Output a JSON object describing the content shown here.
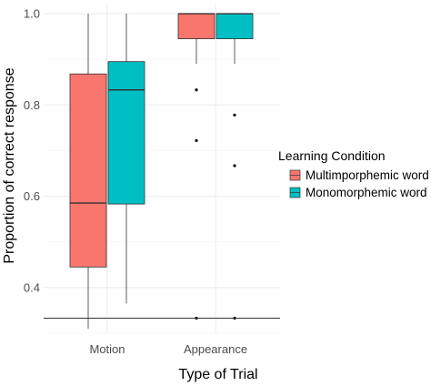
{
  "chart_data": {
    "type": "boxplot",
    "xlabel": "Type of Trial",
    "ylabel": "Proportion of correct response",
    "ylim": [
      0.3,
      1.02
    ],
    "yticks": [
      0.4,
      0.6,
      0.8,
      1.0
    ],
    "ytick_labels": [
      "0.4",
      "0.6",
      "0.8",
      "1.0"
    ],
    "categories": [
      "Motion",
      "Appearance"
    ],
    "reference_line_y": 0.333,
    "grid": true,
    "legend": {
      "title": "Learning Condition",
      "position": "right"
    },
    "series": [
      {
        "name": "Multimporphemic word",
        "color": "#F8766D",
        "boxes": [
          {
            "category": "Motion",
            "whisker_low": 0.31,
            "q1": 0.445,
            "median": 0.585,
            "q3": 0.868,
            "whisker_high": 1.0,
            "outliers": []
          },
          {
            "category": "Appearance",
            "whisker_low": 0.89,
            "q1": 0.945,
            "median": 1.0,
            "q3": 1.0,
            "whisker_high": 1.0,
            "outliers": [
              0.833,
              0.722,
              0.333
            ]
          }
        ]
      },
      {
        "name": "Monomorphemic word",
        "color": "#00BFC4",
        "boxes": [
          {
            "category": "Motion",
            "whisker_low": 0.365,
            "q1": 0.583,
            "median": 0.833,
            "q3": 0.895,
            "whisker_high": 1.0,
            "outliers": []
          },
          {
            "category": "Appearance",
            "whisker_low": 0.89,
            "q1": 0.945,
            "median": 1.0,
            "q3": 1.0,
            "whisker_high": 1.0,
            "outliers": [
              0.778,
              0.667,
              0.333
            ]
          }
        ]
      }
    ]
  }
}
